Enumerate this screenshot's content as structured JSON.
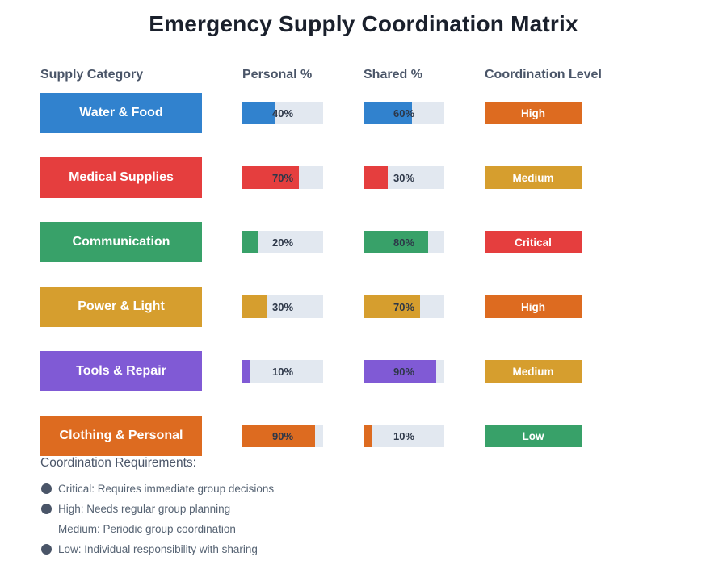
{
  "title": "Emergency Supply Coordination Matrix",
  "columns": {
    "category": "Supply Category",
    "personal": "Personal %",
    "shared": "Shared %",
    "coordination": "Coordination Level"
  },
  "rows": [
    {
      "category": "Water & Food",
      "color": "#3182CE",
      "personal": 40,
      "shared": 60,
      "level": "High",
      "level_color": "#DD6B20"
    },
    {
      "category": "Medical Supplies",
      "color": "#E53E3E",
      "personal": 70,
      "shared": 30,
      "level": "Medium",
      "level_color": "#D69E2E"
    },
    {
      "category": "Communication",
      "color": "#38A169",
      "personal": 20,
      "shared": 80,
      "level": "Critical",
      "level_color": "#E53E3E"
    },
    {
      "category": "Power & Light",
      "color": "#D69E2E",
      "personal": 30,
      "shared": 70,
      "level": "High",
      "level_color": "#DD6B20"
    },
    {
      "category": "Tools & Repair",
      "color": "#805AD5",
      "personal": 10,
      "shared": 90,
      "level": "Medium",
      "level_color": "#D69E2E"
    },
    {
      "category": "Clothing & Personal",
      "color": "#DD6B20",
      "personal": 90,
      "shared": 10,
      "level": "Low",
      "level_color": "#38A169"
    }
  ],
  "bar_track_color": "#E2E8F0",
  "legend": {
    "title": "Coordination Requirements:",
    "items": [
      {
        "bullet": true,
        "text": "Critical: Requires immediate group decisions"
      },
      {
        "bullet": true,
        "text": "High: Needs regular group planning"
      },
      {
        "bullet": false,
        "text": "Medium: Periodic group coordination"
      },
      {
        "bullet": true,
        "text": "Low: Individual responsibility with sharing"
      }
    ]
  },
  "chart_data": {
    "type": "table",
    "title": "Emergency Supply Coordination Matrix",
    "columns": [
      "Supply Category",
      "Personal %",
      "Shared %",
      "Coordination Level"
    ],
    "categories": [
      "Water & Food",
      "Medical Supplies",
      "Communication",
      "Power & Light",
      "Tools & Repair",
      "Clothing & Personal"
    ],
    "series": [
      {
        "name": "Personal %",
        "values": [
          40,
          70,
          20,
          30,
          10,
          90
        ]
      },
      {
        "name": "Shared %",
        "values": [
          60,
          30,
          80,
          70,
          90,
          10
        ]
      }
    ],
    "coordination_levels": [
      "High",
      "Medium",
      "Critical",
      "High",
      "Medium",
      "Low"
    ],
    "value_range": [
      0,
      100
    ],
    "legend_position": "bottom"
  }
}
